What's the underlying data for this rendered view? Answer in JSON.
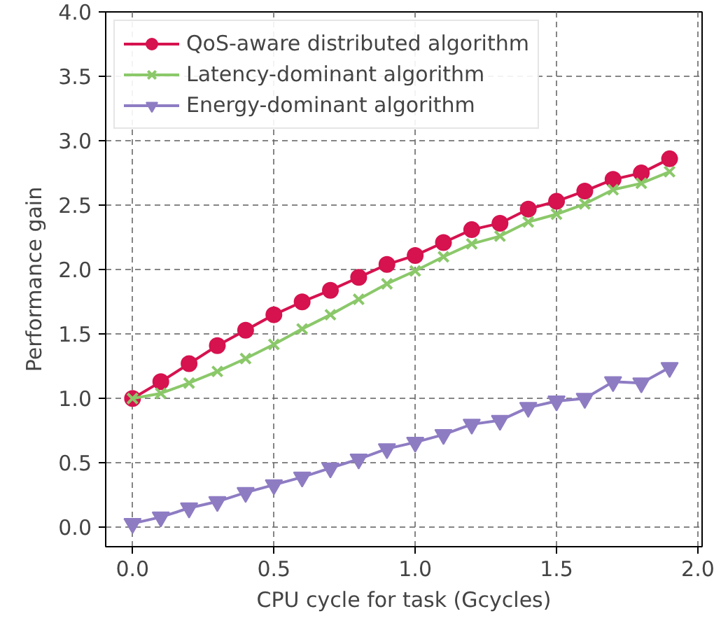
{
  "chart_data": {
    "type": "line",
    "xlabel": "CPU cycle for task (Gcycles)",
    "ylabel": "Performance gain",
    "x": [
      0.0,
      0.1,
      0.2,
      0.3,
      0.4,
      0.5,
      0.6,
      0.7,
      0.8,
      0.9,
      1.0,
      1.1,
      1.2,
      1.3,
      1.4,
      1.5,
      1.6,
      1.7,
      1.8,
      1.9
    ],
    "series": [
      {
        "name": "QoS-aware distributed algorithm",
        "color": "#d6124f",
        "marker": "circle",
        "values": [
          1.0,
          1.13,
          1.27,
          1.41,
          1.53,
          1.65,
          1.75,
          1.84,
          1.94,
          2.04,
          2.11,
          2.21,
          2.31,
          2.36,
          2.47,
          2.53,
          2.61,
          2.7,
          2.75,
          2.86
        ]
      },
      {
        "name": "Latency-dominant algorithm",
        "color": "#8bc86a",
        "marker": "cross",
        "values": [
          1.0,
          1.04,
          1.12,
          1.21,
          1.31,
          1.42,
          1.54,
          1.65,
          1.77,
          1.89,
          1.99,
          2.1,
          2.2,
          2.26,
          2.37,
          2.43,
          2.51,
          2.62,
          2.67,
          2.76
        ]
      },
      {
        "name": "Energy-dominant algorithm",
        "color": "#8e7cc3",
        "marker": "triangle",
        "values": [
          0.03,
          0.08,
          0.15,
          0.2,
          0.27,
          0.33,
          0.39,
          0.46,
          0.53,
          0.61,
          0.66,
          0.72,
          0.8,
          0.83,
          0.93,
          0.98,
          1.0,
          1.13,
          1.12,
          1.24
        ]
      }
    ],
    "xlim": [
      -0.095,
      2.015
    ],
    "ylim": [
      -0.15,
      4.0
    ],
    "xticks": [
      {
        "value": 0,
        "label": "0.0"
      },
      0.5,
      {
        "value": 1,
        "label": "1.0"
      },
      1.5,
      {
        "value": 2,
        "label": "2.0"
      }
    ],
    "yticks": [
      {
        "value": 0,
        "label": "0.0"
      },
      0.5,
      {
        "value": 1,
        "label": "1.0"
      },
      1.5,
      {
        "value": 2,
        "label": "2.0"
      },
      2.5,
      {
        "value": 3,
        "label": "3.0"
      },
      3.5,
      {
        "value": 4,
        "label": "4.0"
      }
    ],
    "grid": true,
    "legend": "top left",
    "line_style": "solid"
  }
}
